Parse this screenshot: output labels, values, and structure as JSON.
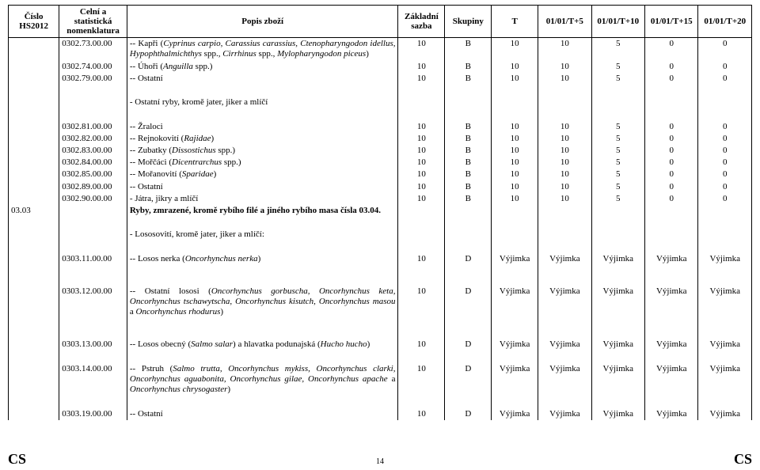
{
  "header": {
    "col_a": "Číslo HS2012",
    "col_b": "Celní a statistická nomenklatura",
    "col_c": "Popis zboží",
    "col_d": "Základní sazba",
    "col_e": "Skupiny",
    "col_f": "T",
    "col_g": "01/01/T+5",
    "col_h": "01/01/T+10",
    "col_i": "01/01/T+15",
    "col_j": "01/01/T+20"
  },
  "rows": [
    {
      "a": "",
      "b": "0302.73.00.00",
      "desc": "-- Kapři (<i>Cyprinus carpio, Carassius carassius, Ctenopharyngodon idellus, Hypophthalmichthys</i> spp., <i>Cirrhinus</i> spp., <i>Mylopharyngodon piceus</i>)",
      "d": "10",
      "e": "B",
      "f": "10",
      "g": "10",
      "h": "5",
      "i": "0",
      "j": "0"
    },
    {
      "a": "",
      "b": "0302.74.00.00",
      "desc": "-- Úhoři (<i>Anguilla</i> spp.)",
      "d": "10",
      "e": "B",
      "f": "10",
      "g": "10",
      "h": "5",
      "i": "0",
      "j": "0"
    },
    {
      "a": "",
      "b": "0302.79.00.00",
      "desc": "-- Ostatní",
      "d": "10",
      "e": "B",
      "f": "10",
      "g": "10",
      "h": "5",
      "i": "0",
      "j": "0"
    },
    {
      "sep": true
    },
    {
      "a": "",
      "b": "",
      "desc": "- Ostatní ryby, kromě jater, jiker a mlíčí",
      "d": "",
      "e": "",
      "f": "",
      "g": "",
      "h": "",
      "i": "",
      "j": ""
    },
    {
      "sep": true
    },
    {
      "a": "",
      "b": "0302.81.00.00",
      "desc": "-- Žraloci",
      "d": "10",
      "e": "B",
      "f": "10",
      "g": "10",
      "h": "5",
      "i": "0",
      "j": "0"
    },
    {
      "a": "",
      "b": "0302.82.00.00",
      "desc": "-- Rejnokovití (<i>Rajidae</i>)",
      "d": "10",
      "e": "B",
      "f": "10",
      "g": "10",
      "h": "5",
      "i": "0",
      "j": "0"
    },
    {
      "a": "",
      "b": "0302.83.00.00",
      "desc": "-- Zubatky (<i>Dissostichus</i> spp.)",
      "d": "10",
      "e": "B",
      "f": "10",
      "g": "10",
      "h": "5",
      "i": "0",
      "j": "0"
    },
    {
      "a": "",
      "b": "0302.84.00.00",
      "desc": "-- Mořčáci (<i>Dicentrarchus</i> spp.)",
      "d": "10",
      "e": "B",
      "f": "10",
      "g": "10",
      "h": "5",
      "i": "0",
      "j": "0"
    },
    {
      "a": "",
      "b": "0302.85.00.00",
      "desc": "-- Mořanovití (<i>Sparidae</i>)",
      "d": "10",
      "e": "B",
      "f": "10",
      "g": "10",
      "h": "5",
      "i": "0",
      "j": "0"
    },
    {
      "a": "",
      "b": "0302.89.00.00",
      "desc": "-- Ostatní",
      "d": "10",
      "e": "B",
      "f": "10",
      "g": "10",
      "h": "5",
      "i": "0",
      "j": "0"
    },
    {
      "a": "",
      "b": "0302.90.00.00",
      "desc": "- Játra, jikry a mlíčí",
      "d": "10",
      "e": "B",
      "f": "10",
      "g": "10",
      "h": "5",
      "i": "0",
      "j": "0"
    },
    {
      "a": "03.03",
      "b": "",
      "desc": "<b>Ryby, zmrazené, kromě rybího filé a jiného rybího masa čísla 03.04.</b>",
      "d": "",
      "e": "",
      "f": "",
      "g": "",
      "h": "",
      "i": "",
      "j": ""
    },
    {
      "sep": true
    },
    {
      "a": "",
      "b": "",
      "desc": "- Lososovití, kromě jater, jiker a mlíčí:",
      "d": "",
      "e": "",
      "f": "",
      "g": "",
      "h": "",
      "i": "",
      "j": ""
    },
    {
      "sep": true
    },
    {
      "a": "",
      "b": "0303.11.00.00",
      "desc": "-- Losos nerka (<i>Oncorhynchus nerka</i>)",
      "d": "10",
      "e": "D",
      "f": "Výjimka",
      "g": "Výjimka",
      "h": "Výjimka",
      "i": "Výjimka",
      "j": "Výjimka"
    },
    {
      "tall": true
    },
    {
      "a": "",
      "b": "0303.12.00.00",
      "desc": "-- Ostatní lososi (<i>Oncorhynchus gorbuscha, Oncorhynchus keta, Oncorhynchus tschawytscha, Oncorhynchus kisutch, Oncorhynchus masou</i> a <i>Oncorhynchus rhodurus</i>)",
      "d": "10",
      "e": "D",
      "f": "Výjimka",
      "g": "Výjimka",
      "h": "Výjimka",
      "i": "Výjimka",
      "j": "Výjimka"
    },
    {
      "tall": true
    },
    {
      "a": "",
      "b": "0303.13.00.00",
      "desc": "-- Losos obecný (<i>Salmo salar</i>) a hlavatka podunajská (<i>Hucho hucho</i>)",
      "d": "10",
      "e": "D",
      "f": "Výjimka",
      "g": "Výjimka",
      "h": "Výjimka",
      "i": "Výjimka",
      "j": "Výjimka"
    },
    {
      "sep": true
    },
    {
      "a": "",
      "b": "0303.14.00.00",
      "desc": "-- Pstruh (<i>Salmo trutta, Oncorhynchus mykiss, Oncorhynchus clarki, Oncorhynchus aguabonita, Oncorhynchus gilae, Oncorhynchus apache</i> a <i>Oncorhynchus chrysogaster</i>)",
      "d": "10",
      "e": "D",
      "f": "Výjimka",
      "g": "Výjimka",
      "h": "Výjimka",
      "i": "Výjimka",
      "j": "Výjimka"
    },
    {
      "sep": true
    },
    {
      "a": "",
      "b": "0303.19.00.00",
      "desc": "-- Ostatní",
      "d": "10",
      "e": "D",
      "f": "Výjimka",
      "g": "Výjimka",
      "h": "Výjimka",
      "i": "Výjimka",
      "j": "Výjimka"
    }
  ],
  "footer": {
    "left": "CS",
    "page": "14",
    "right": "CS"
  }
}
